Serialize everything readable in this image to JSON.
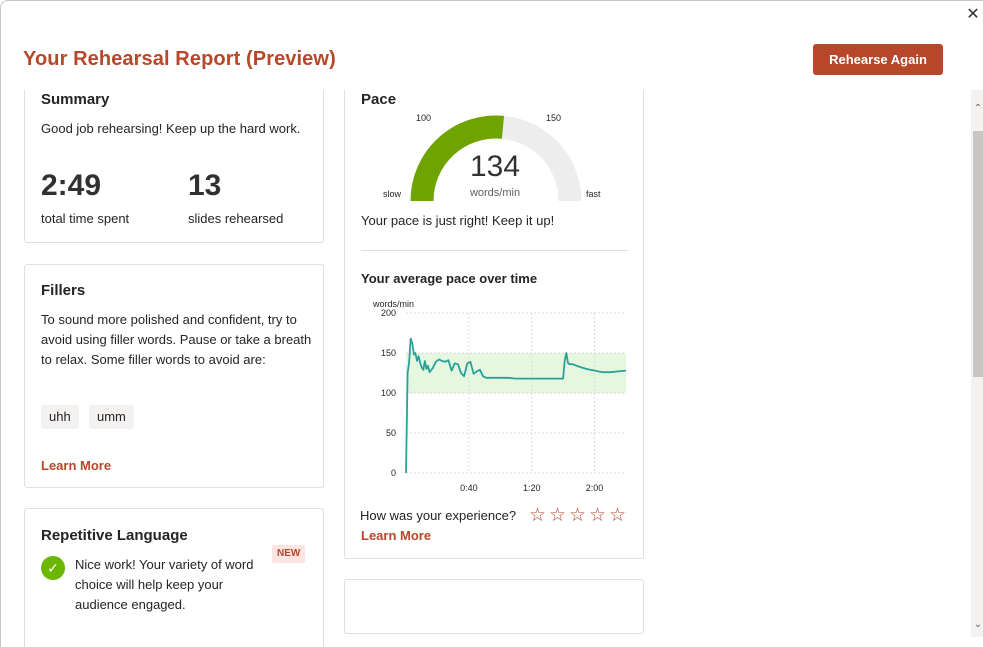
{
  "dialog": {
    "title": "Your Rehearsal Report (Preview)",
    "rehearse_again_label": "Rehearse Again",
    "close_glyph": "✕"
  },
  "summary": {
    "title": "Summary",
    "message": "Good job rehearsing! Keep up the hard work.",
    "time_value": "2:49",
    "time_label": "total time spent",
    "slides_value": "13",
    "slides_label": "slides rehearsed"
  },
  "fillers": {
    "title": "Fillers",
    "message": "To sound more polished and confident, try to avoid using filler words. Pause or take a breath to relax. Some filler words to avoid are:",
    "words": [
      "uhh",
      "umm"
    ],
    "learn_more": "Learn More"
  },
  "repetitive": {
    "title": "Repetitive Language",
    "badge": "NEW",
    "message": "Nice work! Your variety of word choice will help keep your audience engaged.",
    "check_glyph": "✓"
  },
  "pace": {
    "title": "Pace",
    "gauge_min_tick": "100",
    "gauge_max_tick": "150",
    "gauge_slow": "slow",
    "gauge_fast": "fast",
    "gauge_value": "134",
    "gauge_unit": "words/min",
    "gauge_fraction": 0.53,
    "message": "Your pace is just right! Keep it up!",
    "chart_title": "Your average pace over time",
    "learn_more": "Learn More"
  },
  "rating": {
    "prompt": "How was your experience?",
    "stars": [
      "☆",
      "☆",
      "☆",
      "☆",
      "☆"
    ]
  },
  "colors": {
    "accent": "#b7472a",
    "gauge_fill": "#6fa300",
    "gauge_track": "#ededed",
    "line": "#2aa198",
    "band": "#e6f7e0",
    "check": "#6bb700"
  },
  "chart_data": {
    "type": "line",
    "ylabel": "words/min",
    "xlabel": "",
    "ylim": [
      0,
      200
    ],
    "yticks": [
      0,
      50,
      100,
      150,
      200
    ],
    "xlim": [
      0,
      140
    ],
    "xticks": [
      40,
      80,
      120
    ],
    "xtick_labels": [
      "0:40",
      "1:20",
      "2:00"
    ],
    "target_band": [
      100,
      150
    ],
    "grid": true,
    "series": [
      {
        "x": [
          0,
          1,
          2,
          3,
          4,
          5,
          6,
          7,
          8,
          9,
          10,
          11,
          12,
          13,
          14,
          15,
          17,
          19,
          21,
          23,
          25,
          27,
          29,
          31,
          33,
          35,
          37,
          39,
          41,
          43,
          45,
          47,
          49,
          51,
          53,
          55,
          57,
          59,
          61,
          63,
          65,
          70,
          80,
          90,
          100,
          101,
          102,
          103,
          104,
          106,
          110,
          115,
          120,
          125,
          130,
          135,
          140
        ],
        "y": [
          0,
          125,
          138,
          168,
          162,
          148,
          150,
          140,
          146,
          138,
          132,
          129,
          140,
          130,
          134,
          126,
          131,
          139,
          142,
          140,
          139,
          141,
          128,
          137,
          136,
          125,
          121,
          137,
          139,
          124,
          127,
          129,
          121,
          119,
          119,
          119,
          119,
          119,
          119,
          119,
          119,
          118,
          118,
          118,
          118,
          140,
          150,
          138,
          136,
          136,
          133,
          130,
          128,
          126,
          126,
          127,
          128
        ]
      }
    ]
  }
}
